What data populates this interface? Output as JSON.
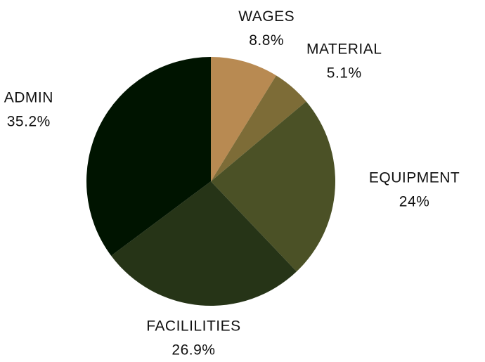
{
  "chart_data": {
    "type": "pie",
    "categories": [
      "WAGES",
      "MATERIAL",
      "EQUIPMENT",
      "FACILILITIES",
      "ADMIN"
    ],
    "values": [
      8.8,
      5.1,
      24,
      26.9,
      35.2
    ],
    "value_labels": [
      "8.8%",
      "5.1%",
      "24%",
      "26.9%",
      "35.2%"
    ],
    "colors": [
      "#b88a52",
      "#7d6c37",
      "#4b5126",
      "#263417",
      "#001400"
    ]
  }
}
